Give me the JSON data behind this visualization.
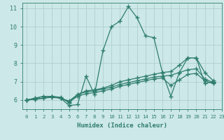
{
  "xlabel": "Humidex (Indice chaleur)",
  "bg_color": "#cde8e8",
  "grid_color": "#b0d0d0",
  "line_color": "#2e7d6e",
  "xlim": [
    -0.5,
    23
  ],
  "ylim": [
    5.5,
    11.3
  ],
  "yticks": [
    6,
    7,
    8,
    9,
    10,
    11
  ],
  "xticks": [
    0,
    1,
    2,
    3,
    4,
    5,
    6,
    7,
    8,
    9,
    10,
    11,
    12,
    13,
    14,
    15,
    16,
    17,
    18,
    19,
    20,
    21,
    22,
    23
  ],
  "lines": [
    {
      "x": [
        0,
        1,
        2,
        3,
        4,
        5,
        6,
        7,
        8,
        9,
        10,
        11,
        12,
        13,
        14,
        15,
        16,
        17,
        18,
        19,
        20,
        21,
        22
      ],
      "y": [
        6.0,
        6.1,
        6.2,
        6.2,
        6.1,
        5.7,
        5.75,
        7.3,
        6.3,
        8.7,
        10.0,
        10.3,
        11.1,
        10.5,
        9.5,
        9.4,
        7.5,
        6.2,
        7.5,
        8.3,
        8.3,
        6.9,
        7.0
      ]
    },
    {
      "x": [
        0,
        1,
        2,
        3,
        4,
        5,
        6,
        7,
        8,
        9,
        10,
        11,
        12,
        13,
        14,
        15,
        16,
        17,
        18,
        19,
        20,
        21,
        22
      ],
      "y": [
        6.0,
        6.1,
        6.2,
        6.2,
        6.15,
        5.85,
        6.3,
        6.5,
        6.55,
        6.65,
        6.8,
        7.0,
        7.1,
        7.2,
        7.3,
        7.4,
        7.5,
        7.55,
        7.9,
        8.3,
        8.3,
        7.5,
        7.05
      ]
    },
    {
      "x": [
        0,
        1,
        2,
        3,
        4,
        5,
        6,
        7,
        8,
        9,
        10,
        11,
        12,
        13,
        14,
        15,
        16,
        17,
        18,
        19,
        20,
        21,
        22
      ],
      "y": [
        6.0,
        6.05,
        6.1,
        6.2,
        6.1,
        5.95,
        6.3,
        6.45,
        6.5,
        6.6,
        6.7,
        6.85,
        6.95,
        7.05,
        7.15,
        7.25,
        7.3,
        7.35,
        7.5,
        7.65,
        7.7,
        7.15,
        6.95
      ]
    },
    {
      "x": [
        0,
        1,
        2,
        3,
        4,
        5,
        6,
        7,
        8,
        9,
        10,
        11,
        12,
        13,
        14,
        15,
        16,
        17,
        18,
        19,
        20,
        21,
        22
      ],
      "y": [
        6.0,
        6.05,
        6.1,
        6.15,
        6.1,
        5.9,
        6.2,
        6.35,
        6.4,
        6.5,
        6.6,
        6.75,
        6.85,
        6.95,
        7.05,
        7.15,
        7.2,
        6.8,
        7.1,
        7.4,
        7.45,
        7.05,
        6.9
      ]
    }
  ]
}
